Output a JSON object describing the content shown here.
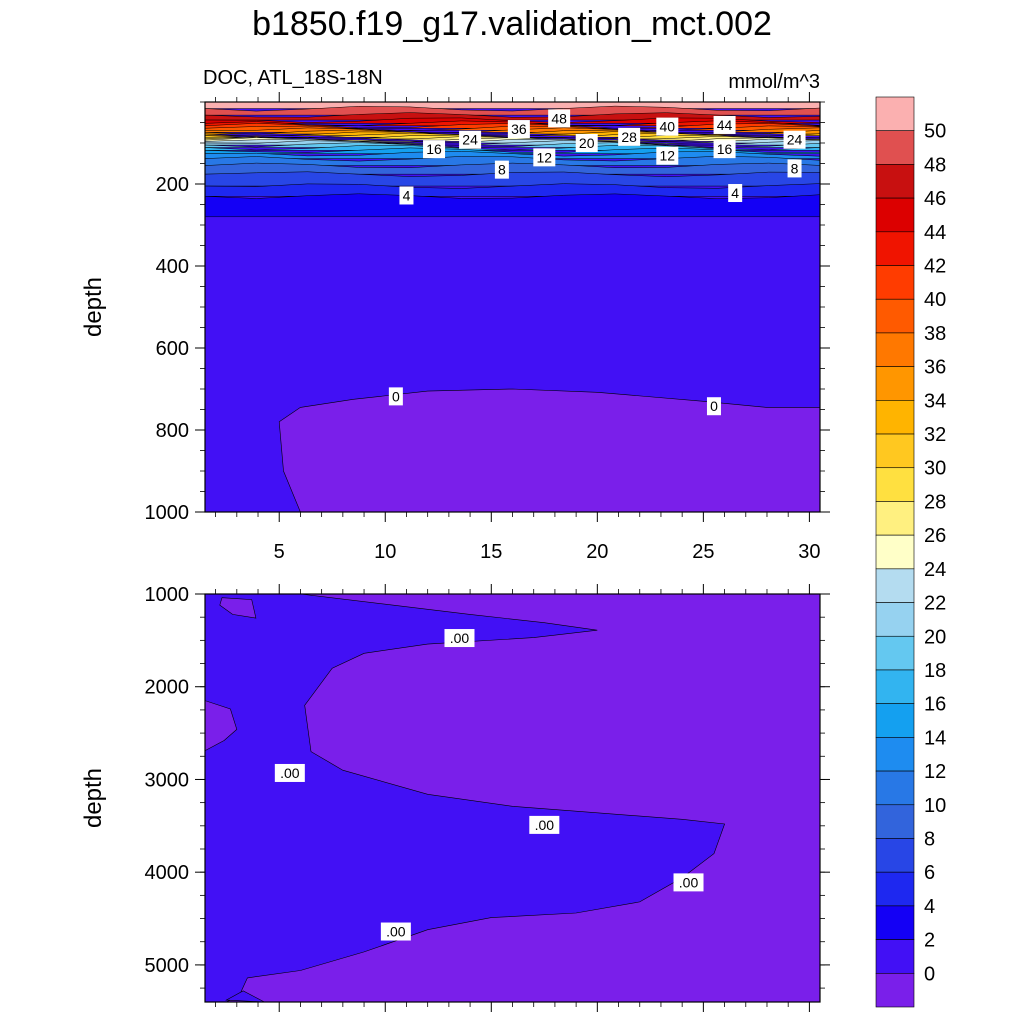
{
  "title": "b1850.f19_g17.validation_mct.002",
  "chart_data": [
    {
      "type": "contour",
      "left_label": "DOC, ATL_18S-18N",
      "right_label": "mmol/m^3",
      "ylabel": "depth",
      "ylim": [
        0,
        1000
      ],
      "yticks": [
        200,
        400,
        600,
        800,
        1000
      ],
      "xlim": [
        1.5,
        30.5
      ],
      "xticks": [
        5,
        10,
        15,
        20,
        25,
        30
      ],
      "background_color": "#4210f5",
      "regions": [
        {
          "level": 50,
          "color": "#fbb0b0",
          "top": 0,
          "bottom": 16
        },
        {
          "level": 48,
          "color": "#e05050",
          "top": 16,
          "bottom": 32
        },
        {
          "level": 46,
          "color": "#c81010",
          "top": 32,
          "bottom": 44
        },
        {
          "level": 44,
          "color": "#dc0000",
          "top": 44,
          "bottom": 52
        },
        {
          "level": 42,
          "color": "#f01400",
          "top": 52,
          "bottom": 58
        },
        {
          "level": 40,
          "color": "#ff3c00",
          "top": 58,
          "bottom": 64
        },
        {
          "level": 38,
          "color": "#ff5a00",
          "top": 64,
          "bottom": 69
        },
        {
          "level": 36,
          "color": "#ff7800",
          "top": 69,
          "bottom": 74
        },
        {
          "level": 34,
          "color": "#ff9600",
          "top": 74,
          "bottom": 78
        },
        {
          "level": 32,
          "color": "#ffb400",
          "top": 78,
          "bottom": 82
        },
        {
          "level": 30,
          "color": "#ffc820",
          "top": 82,
          "bottom": 86
        },
        {
          "level": 28,
          "color": "#ffe040",
          "top": 86,
          "bottom": 90
        },
        {
          "level": 26,
          "color": "#fff080",
          "top": 90,
          "bottom": 93
        },
        {
          "level": 24,
          "color": "#ffffc8",
          "top": 93,
          "bottom": 96
        },
        {
          "level": 22,
          "color": "#b4dcf0",
          "top": 96,
          "bottom": 100
        },
        {
          "level": 20,
          "color": "#96d2f0",
          "top": 100,
          "bottom": 105
        },
        {
          "level": 18,
          "color": "#64c8f0",
          "top": 105,
          "bottom": 111
        },
        {
          "level": 16,
          "color": "#32b4f0",
          "top": 111,
          "bottom": 118
        },
        {
          "level": 14,
          "color": "#14a0f0",
          "top": 118,
          "bottom": 126
        },
        {
          "level": 12,
          "color": "#1e8cf0",
          "top": 126,
          "bottom": 138
        },
        {
          "level": 10,
          "color": "#2878e6",
          "top": 138,
          "bottom": 155
        },
        {
          "level": 8,
          "color": "#3264dc",
          "top": 155,
          "bottom": 176
        },
        {
          "level": 6,
          "color": "#2846e6",
          "top": 176,
          "bottom": 205
        },
        {
          "level": 4,
          "color": "#1e28f0",
          "top": 205,
          "bottom": 230
        },
        {
          "level": 2,
          "color": "#1400f5",
          "top": 230,
          "bottom": 280
        }
      ],
      "zero_region": {
        "color": "#7a1fea",
        "points": [
          [
            6.0,
            1000
          ],
          [
            5.2,
            900
          ],
          [
            5.0,
            780
          ],
          [
            6.0,
            745
          ],
          [
            8.5,
            725
          ],
          [
            12.0,
            705
          ],
          [
            16.0,
            700
          ],
          [
            20.0,
            708
          ],
          [
            25.0,
            730
          ],
          [
            28.0,
            745
          ],
          [
            30.5,
            745
          ],
          [
            30.5,
            1000
          ]
        ]
      },
      "line_labels": [
        {
          "text": "48",
          "x": 18.2,
          "y": 40
        },
        {
          "text": "44",
          "x": 26.0,
          "y": 56
        },
        {
          "text": "40",
          "x": 23.3,
          "y": 60
        },
        {
          "text": "36",
          "x": 16.3,
          "y": 66
        },
        {
          "text": "28",
          "x": 21.5,
          "y": 85
        },
        {
          "text": "24",
          "x": 14.0,
          "y": 92
        },
        {
          "text": "24",
          "x": 29.3,
          "y": 92
        },
        {
          "text": "20",
          "x": 19.5,
          "y": 100
        },
        {
          "text": "16",
          "x": 12.3,
          "y": 115
        },
        {
          "text": "16",
          "x": 26.0,
          "y": 115
        },
        {
          "text": "12",
          "x": 17.5,
          "y": 135
        },
        {
          "text": "12",
          "x": 23.3,
          "y": 131
        },
        {
          "text": "8",
          "x": 15.5,
          "y": 165
        },
        {
          "text": "8",
          "x": 29.3,
          "y": 162
        },
        {
          "text": "4",
          "x": 11.0,
          "y": 228
        },
        {
          "text": "4",
          "x": 26.5,
          "y": 222
        },
        {
          "text": "0",
          "x": 10.5,
          "y": 718
        },
        {
          "text": "0",
          "x": 25.5,
          "y": 742
        }
      ]
    },
    {
      "type": "contour",
      "ylabel": "depth",
      "ylim": [
        1000,
        5400
      ],
      "yticks": [
        1000,
        2000,
        3000,
        4000,
        5000
      ],
      "xlim": [
        1.5,
        30.5
      ],
      "background_color": "#7a1fea",
      "contour_color": "#4210f5",
      "regions": [
        {
          "level": 0,
          "points": [
            [
              1.5,
              1000
            ],
            [
              6.0,
              1000
            ],
            [
              10.0,
              1110
            ],
            [
              14.0,
              1220
            ],
            [
              17.5,
              1310
            ],
            [
              20.0,
              1390
            ],
            [
              17.0,
              1470
            ],
            [
              12.0,
              1540
            ],
            [
              9.0,
              1640
            ],
            [
              7.5,
              1800
            ],
            [
              6.2,
              2200
            ],
            [
              6.5,
              2700
            ],
            [
              8.0,
              2900
            ],
            [
              12.0,
              3160
            ],
            [
              16.0,
              3290
            ],
            [
              20.0,
              3360
            ],
            [
              24.0,
              3430
            ],
            [
              26.0,
              3480
            ],
            [
              25.5,
              3800
            ],
            [
              24.0,
              4060
            ],
            [
              22.0,
              4320
            ],
            [
              19.0,
              4440
            ],
            [
              15.0,
              4490
            ],
            [
              12.0,
              4620
            ],
            [
              9.0,
              4860
            ],
            [
              6.0,
              5060
            ],
            [
              3.5,
              5140
            ],
            [
              3.1,
              5340
            ],
            [
              2.5,
              5400
            ],
            [
              1.5,
              5400
            ]
          ]
        },
        {
          "level": 0,
          "points": [
            [
              2.5,
              5380
            ],
            [
              3.3,
              5280
            ],
            [
              4.3,
              5400
            ]
          ]
        }
      ],
      "holes": [
        [
          [
            2.3,
            1040
          ],
          [
            3.7,
            1060
          ],
          [
            3.9,
            1260
          ],
          [
            2.8,
            1220
          ],
          [
            2.2,
            1120
          ]
        ],
        [
          [
            1.5,
            2150
          ],
          [
            2.7,
            2240
          ],
          [
            3.0,
            2460
          ],
          [
            2.4,
            2580
          ],
          [
            1.5,
            2690
          ]
        ]
      ],
      "line_labels": [
        {
          "text": ".00",
          "x": 13.5,
          "y": 1475
        },
        {
          "text": ".00",
          "x": 5.5,
          "y": 2930
        },
        {
          "text": ".00",
          "x": 17.5,
          "y": 3490
        },
        {
          "text": ".00",
          "x": 24.3,
          "y": 4110
        },
        {
          "text": ".00",
          "x": 10.5,
          "y": 4640
        }
      ]
    }
  ],
  "colorbar": {
    "labels": [
      "50",
      "48",
      "46",
      "44",
      "42",
      "40",
      "38",
      "36",
      "34",
      "32",
      "30",
      "28",
      "26",
      "24",
      "22",
      "20",
      "18",
      "16",
      "14",
      "12",
      "10",
      "8",
      "6",
      "4",
      "2",
      "0"
    ],
    "colors": [
      "#fbb0b0",
      "#e05050",
      "#c81010",
      "#dc0000",
      "#f01400",
      "#ff3c00",
      "#ff5a00",
      "#ff7800",
      "#ff9600",
      "#ffb400",
      "#ffc820",
      "#ffe040",
      "#fff080",
      "#ffffc8",
      "#b4dcf0",
      "#96d2f0",
      "#64c8f0",
      "#32b4f0",
      "#14a0f0",
      "#1e8cf0",
      "#2878e6",
      "#3264dc",
      "#2846e6",
      "#1e28f0",
      "#1400f5",
      "#4210f5",
      "#7a1fea"
    ]
  }
}
